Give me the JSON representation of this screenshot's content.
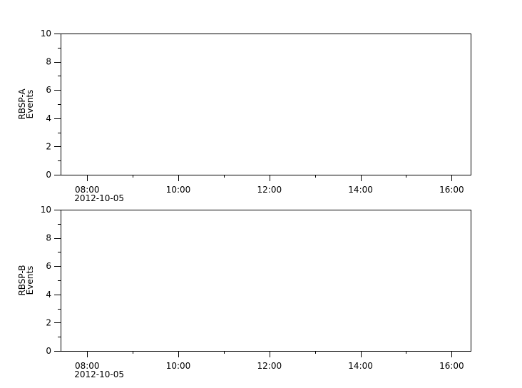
{
  "chart_data": [
    {
      "type": "scatter",
      "ylabel_lines": [
        "RBSP-A",
        "Events"
      ],
      "ylim": [
        0,
        10
      ],
      "yticks": [
        "0",
        "2",
        "4",
        "6",
        "8",
        "10"
      ],
      "xlim": [
        "2012-10-05 07:25",
        "2012-10-05 16:25"
      ],
      "xticks": [
        "08:00",
        "10:00",
        "12:00",
        "14:00",
        "16:00"
      ],
      "xdate_label": "2012-10-05",
      "series": [],
      "grid": false
    },
    {
      "type": "scatter",
      "ylabel_lines": [
        "RBSP-B",
        "Events"
      ],
      "ylim": [
        0,
        10
      ],
      "yticks": [
        "0",
        "2",
        "4",
        "6",
        "8",
        "10"
      ],
      "xlim": [
        "2012-10-05 07:25",
        "2012-10-05 16:25"
      ],
      "xticks": [
        "08:00",
        "10:00",
        "12:00",
        "14:00",
        "16:00"
      ],
      "xdate_label": "2012-10-05",
      "series": [],
      "grid": false
    }
  ]
}
